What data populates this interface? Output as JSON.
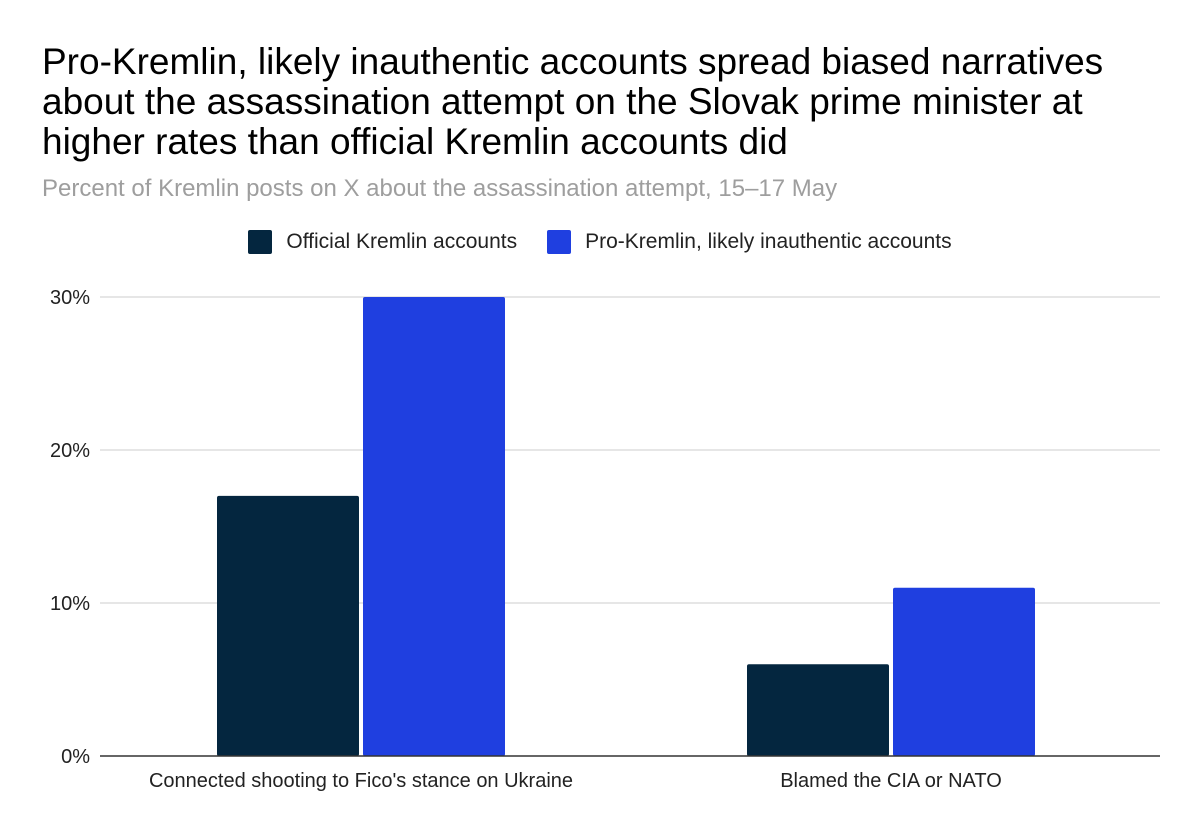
{
  "title": "Pro-Kremlin, likely inauthentic accounts spread biased narratives about the assassination attempt on the Slovak prime minister at higher rates than official Kremlin accounts did",
  "subtitle": "Percent of Kremlin posts on X about the assassination attempt, 15–17 May",
  "colors": {
    "official": "#04263f",
    "inauthentic": "#1f3fe0",
    "grid": "#cccccc",
    "axis": "#333333"
  },
  "chart_data": {
    "type": "bar",
    "categories": [
      "Connected shooting to Fico's stance on Ukraine",
      "Blamed the CIA or NATO"
    ],
    "series": [
      {
        "name": "Official Kremlin accounts",
        "values": [
          17,
          6
        ]
      },
      {
        "name": "Pro-Kremlin, likely inauthentic accounts",
        "values": [
          30,
          11
        ]
      }
    ],
    "y_ticks": [
      "0%",
      "10%",
      "20%",
      "30%"
    ],
    "ylim": [
      0,
      30
    ],
    "legend_position": "top",
    "grid": true
  }
}
